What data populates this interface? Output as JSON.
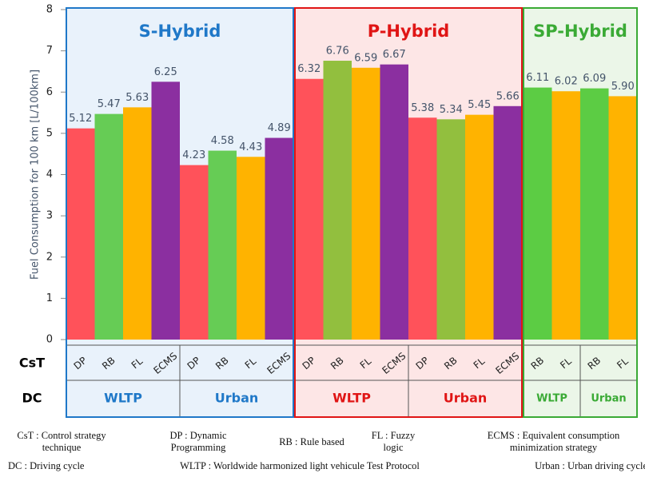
{
  "chart_data": {
    "type": "bar",
    "ylabel": "Fuel Consumption for 100 km [L/100km]",
    "ylim": [
      0,
      8
    ],
    "yticks": [
      0,
      1,
      2,
      3,
      4,
      5,
      6,
      7,
      8
    ],
    "row_labels": [
      "CsT",
      "DC"
    ],
    "panels": [
      {
        "title": "S-Hybrid",
        "color": "#1f78c8",
        "background": "#e9f2fb",
        "groups": [
          {
            "dc": "WLTP",
            "cst": [
              "DP",
              "RB",
              "FL",
              "ECMS"
            ],
            "values": [
              5.12,
              5.47,
              5.63,
              6.25
            ],
            "value_labels": [
              "5.12",
              "5.47",
              "5.63",
              "6.25"
            ],
            "colors": [
              "#ff525a",
              "#66cc55",
              "#ffb300",
              "#8b2fa0"
            ]
          },
          {
            "dc": "Urban",
            "cst": [
              "DP",
              "RB",
              "FL",
              "ECMS"
            ],
            "values": [
              4.23,
              4.58,
              4.43,
              4.89
            ],
            "value_labels": [
              "4.23",
              "4.58",
              "4.43",
              "4.89"
            ],
            "colors": [
              "#ff525a",
              "#66cc55",
              "#ffb300",
              "#8b2fa0"
            ]
          }
        ]
      },
      {
        "title": "P-Hybrid",
        "color": "#e01515",
        "background": "#fde6e6",
        "groups": [
          {
            "dc": "WLTP",
            "cst": [
              "DP",
              "RB",
              "FL",
              "ECMS"
            ],
            "values": [
              6.32,
              6.76,
              6.59,
              6.67
            ],
            "value_labels": [
              "6.32",
              "6.76",
              "6.59",
              "6.67"
            ],
            "colors": [
              "#ff525a",
              "#92bf3e",
              "#ffb300",
              "#8b2fa0"
            ]
          },
          {
            "dc": "Urban",
            "cst": [
              "DP",
              "RB",
              "FL",
              "ECMS"
            ],
            "values": [
              5.38,
              5.34,
              5.45,
              5.66
            ],
            "value_labels": [
              "5.38",
              "5.34",
              "5.45",
              "5.66"
            ],
            "colors": [
              "#ff525a",
              "#92bf3e",
              "#ffb300",
              "#8b2fa0"
            ]
          }
        ]
      },
      {
        "title": "SP-Hybrid",
        "color": "#3aaa35",
        "background": "#ebf6e8",
        "groups": [
          {
            "dc": "WLTP",
            "cst": [
              "RB",
              "FL"
            ],
            "values": [
              6.11,
              6.02
            ],
            "value_labels": [
              "6.11",
              "6.02"
            ],
            "colors": [
              "#5ccc44",
              "#ffb300"
            ]
          },
          {
            "dc": "Urban",
            "cst": [
              "RB",
              "FL"
            ],
            "values": [
              6.09,
              5.9
            ],
            "value_labels": [
              "6.09",
              "5.90"
            ],
            "colors": [
              "#5ccc44",
              "#ffb300"
            ]
          }
        ]
      }
    ],
    "footnotes": [
      "CsT : Control strategy technique",
      "DP : Dynamic Programming",
      "RB : Rule based",
      "FL : Fuzzy logic",
      "ECMS : Equivalent consumption minimization strategy",
      "DC : Driving cycle",
      "WLTP : Worldwide harmonized light vehicule Test Protocol",
      "Urban : Urban driving cycle"
    ]
  }
}
